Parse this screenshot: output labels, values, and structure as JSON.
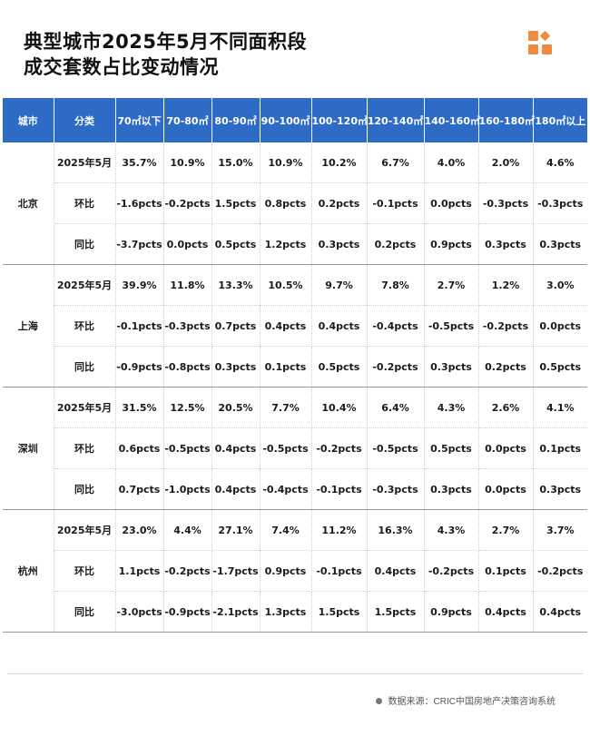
{
  "title": {
    "line1": "典型城市2025年5月不同面积段",
    "line2": "成交套数占比变动情况"
  },
  "logo": {
    "icon": "cric-squares-logo-icon",
    "color": "#f08a3c"
  },
  "colors": {
    "header_bg": "#2e6bc6",
    "positive": "#e0201b",
    "negative": "#1f9e3e"
  },
  "table": {
    "headers": [
      "城市",
      "分类",
      "70㎡以下",
      "70-80㎡",
      "80-90㎡",
      "90-100㎡",
      "100-120㎡",
      "120-140㎡",
      "140-160㎡",
      "160-180㎡",
      "180㎡以上"
    ],
    "groups": [
      {
        "city": "北京",
        "rows": [
          {
            "label": "2025年5月",
            "values": [
              "35.7%",
              "10.9%",
              "15.0%",
              "10.9%",
              "10.2%",
              "6.7%",
              "4.0%",
              "2.0%",
              "4.6%"
            ]
          },
          {
            "label": "环比",
            "values": [
              "-1.6pcts",
              "-0.2pcts",
              "1.5pcts",
              "0.8pcts",
              "0.2pcts",
              "-0.1pcts",
              "0.0pcts",
              "-0.3pcts",
              "-0.3pcts"
            ]
          },
          {
            "label": "同比",
            "values": [
              "-3.7pcts",
              "0.0pcts",
              "0.5pcts",
              "1.2pcts",
              "0.3pcts",
              "0.2pcts",
              "0.9pcts",
              "0.3pcts",
              "0.3pcts"
            ]
          }
        ]
      },
      {
        "city": "上海",
        "rows": [
          {
            "label": "2025年5月",
            "values": [
              "39.9%",
              "11.8%",
              "13.3%",
              "10.5%",
              "9.7%",
              "7.8%",
              "2.7%",
              "1.2%",
              "3.0%"
            ]
          },
          {
            "label": "环比",
            "values": [
              "-0.1pcts",
              "-0.3pcts",
              "0.7pcts",
              "0.4pcts",
              "0.4pcts",
              "-0.4pcts",
              "-0.5pcts",
              "-0.2pcts",
              "0.0pcts"
            ]
          },
          {
            "label": "同比",
            "values": [
              "-0.9pcts",
              "-0.8pcts",
              "0.3pcts",
              "0.1pcts",
              "0.5pcts",
              "-0.2pcts",
              "0.3pcts",
              "0.2pcts",
              "0.5pcts"
            ]
          }
        ]
      },
      {
        "city": "深圳",
        "rows": [
          {
            "label": "2025年5月",
            "values": [
              "31.5%",
              "12.5%",
              "20.5%",
              "7.7%",
              "10.4%",
              "6.4%",
              "4.3%",
              "2.6%",
              "4.1%"
            ]
          },
          {
            "label": "环比",
            "values": [
              "0.6pcts",
              "-0.5pcts",
              "0.4pcts",
              "-0.5pcts",
              "-0.2pcts",
              "-0.5pcts",
              "0.5pcts",
              "0.0pcts",
              "0.1pcts"
            ]
          },
          {
            "label": "同比",
            "values": [
              "0.7pcts",
              "-1.0pcts",
              "0.4pcts",
              "-0.4pcts",
              "-0.1pcts",
              "-0.3pcts",
              "0.3pcts",
              "0.0pcts",
              "0.3pcts"
            ]
          }
        ]
      },
      {
        "city": "杭州",
        "rows": [
          {
            "label": "2025年5月",
            "values": [
              "23.0%",
              "4.4%",
              "27.1%",
              "7.4%",
              "11.2%",
              "16.3%",
              "4.3%",
              "2.7%",
              "3.7%"
            ]
          },
          {
            "label": "环比",
            "values": [
              "1.1pcts",
              "-0.2pcts",
              "-1.7pcts",
              "0.9pcts",
              "-0.1pcts",
              "0.4pcts",
              "-0.2pcts",
              "0.1pcts",
              "-0.2pcts"
            ]
          },
          {
            "label": "同比",
            "values": [
              "-3.0pcts",
              "-0.9pcts",
              "-2.1pcts",
              "1.3pcts",
              "1.5pcts",
              "1.5pcts",
              "0.9pcts",
              "0.4pcts",
              "0.4pcts"
            ]
          }
        ]
      }
    ]
  },
  "footer": {
    "source": "数据来源：CRIC中国房地产决策咨询系统"
  }
}
